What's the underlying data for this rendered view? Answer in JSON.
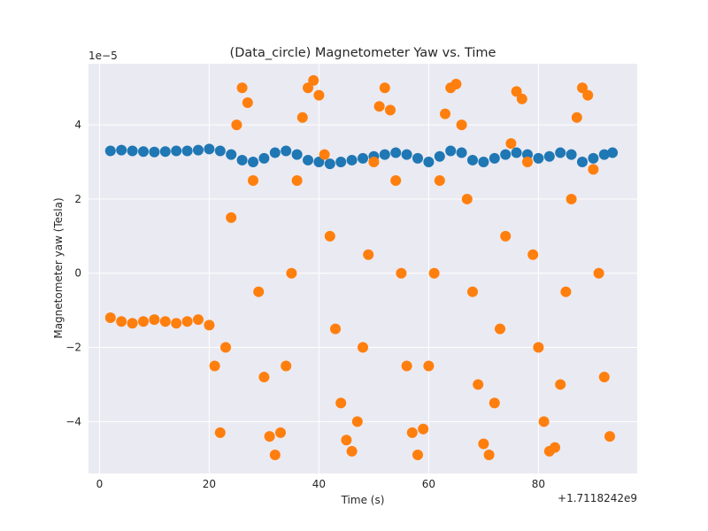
{
  "chart_data": {
    "type": "scatter",
    "title": "(Data_circle) Magnetometer Yaw vs. Time",
    "xlabel": "Time (s)",
    "ylabel": "Magnetometer yaw (Tesla)",
    "x_offset_label": "+1.7118242e9",
    "y_scale_label": "1e−5",
    "xlim": [
      -2,
      98
    ],
    "ylim": [
      -5.4,
      5.65
    ],
    "x_ticks": [
      0,
      20,
      40,
      60,
      80
    ],
    "x_tick_labels": [
      "0",
      "20",
      "40",
      "60",
      "80"
    ],
    "y_ticks": [
      -4,
      -2,
      0,
      2,
      4
    ],
    "y_tick_labels": [
      "−4",
      "−2",
      "0",
      "2",
      "4"
    ],
    "grid": true,
    "background": "#eaeaf2",
    "series": [
      {
        "color": "#1f77b4",
        "x": [
          2,
          4,
          6,
          8,
          10,
          12,
          14,
          16,
          18,
          20,
          22,
          24,
          26,
          28,
          30,
          32,
          34,
          36,
          38,
          40,
          42,
          44,
          46,
          48,
          50,
          52,
          54,
          56,
          58,
          60,
          62,
          64,
          66,
          68,
          70,
          72,
          74,
          76,
          78,
          80,
          82,
          84,
          86,
          88,
          90,
          92,
          93.5
        ],
        "y": [
          3.3,
          3.32,
          3.3,
          3.28,
          3.27,
          3.28,
          3.3,
          3.3,
          3.32,
          3.35,
          3.3,
          3.2,
          3.05,
          3.0,
          3.1,
          3.25,
          3.3,
          3.2,
          3.05,
          3.0,
          2.95,
          3.0,
          3.05,
          3.1,
          3.15,
          3.2,
          3.25,
          3.2,
          3.1,
          3.0,
          3.15,
          3.3,
          3.25,
          3.05,
          3.0,
          3.1,
          3.2,
          3.25,
          3.2,
          3.1,
          3.15,
          3.25,
          3.2,
          3.0,
          3.1,
          3.2,
          3.25
        ]
      },
      {
        "color": "#ff7f0e",
        "x": [
          2,
          4,
          6,
          8,
          10,
          12,
          14,
          16,
          18,
          20,
          21,
          22,
          23,
          24,
          25,
          26,
          27,
          28,
          29,
          30,
          31,
          32,
          33,
          34,
          35,
          36,
          37,
          38,
          39,
          40,
          41,
          42,
          43,
          44,
          45,
          46,
          47,
          48,
          49,
          50,
          51,
          52,
          53,
          54,
          55,
          56,
          57,
          58,
          59,
          60,
          61,
          62,
          63,
          64,
          65,
          66,
          67,
          68,
          69,
          70,
          71,
          72,
          73,
          74,
          75,
          76,
          77,
          78,
          79,
          80,
          81,
          82,
          83,
          84,
          85,
          86,
          87,
          88,
          89,
          90,
          91,
          92,
          93
        ],
        "y": [
          -1.2,
          -1.3,
          -1.35,
          -1.3,
          -1.25,
          -1.3,
          -1.35,
          -1.3,
          -1.25,
          -1.4,
          -2.5,
          -4.3,
          -2.0,
          1.5,
          4.0,
          5.0,
          4.6,
          2.5,
          -0.5,
          -2.8,
          -4.4,
          -4.9,
          -4.3,
          -2.5,
          0.0,
          2.5,
          4.2,
          5.0,
          5.2,
          4.8,
          3.2,
          1.0,
          -1.5,
          -3.5,
          -4.5,
          -4.8,
          -4.0,
          -2.0,
          0.5,
          3.0,
          4.5,
          5.0,
          4.4,
          2.5,
          0.0,
          -2.5,
          -4.3,
          -4.9,
          -4.2,
          -2.5,
          0.0,
          2.5,
          4.3,
          5.0,
          5.1,
          4.0,
          2.0,
          -0.5,
          -3.0,
          -4.6,
          -4.9,
          -3.5,
          -1.5,
          1.0,
          3.5,
          4.9,
          4.7,
          3.0,
          0.5,
          -2.0,
          -4.0,
          -4.8,
          -4.7,
          -3.0,
          -0.5,
          2.0,
          4.2,
          5.0,
          4.8,
          2.8,
          0.0,
          -2.8,
          -4.4
        ]
      }
    ]
  }
}
